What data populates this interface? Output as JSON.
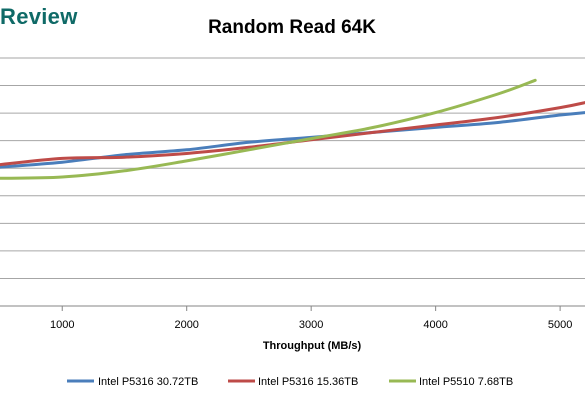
{
  "brand": "Review",
  "chart_data": {
    "type": "line",
    "title": "Random Read 64K",
    "xlabel": "Throughput (MB/s)",
    "ylabel": "",
    "xlim": [
      500,
      5200
    ],
    "ylim": [
      0,
      10
    ],
    "xticks": [
      1000,
      2000,
      3000,
      4000,
      5000
    ],
    "grid": true,
    "legend_position": "bottom",
    "series": [
      {
        "name": "Intel P5316 30.72TB",
        "color": "#4a7ebb",
        "x": [
          500,
          1000,
          1500,
          2000,
          2500,
          3000,
          3500,
          4000,
          4500,
          5000,
          5200
        ],
        "y": [
          5.6,
          5.8,
          6.1,
          6.3,
          6.6,
          6.8,
          7.0,
          7.2,
          7.4,
          7.7,
          7.8
        ]
      },
      {
        "name": "Intel P5316 15.36TB",
        "color": "#be4b48",
        "x": [
          500,
          1000,
          1500,
          2000,
          2500,
          3000,
          3500,
          4000,
          4500,
          5000,
          5200
        ],
        "y": [
          5.7,
          5.95,
          6.0,
          6.15,
          6.4,
          6.7,
          7.0,
          7.3,
          7.6,
          8.0,
          8.2
        ]
      },
      {
        "name": "Intel P5510 7.68TB",
        "color": "#98b954",
        "x": [
          500,
          1000,
          1500,
          2000,
          2500,
          3000,
          3500,
          4000,
          4500,
          4800
        ],
        "y": [
          5.15,
          5.2,
          5.45,
          5.85,
          6.3,
          6.75,
          7.2,
          7.8,
          8.55,
          9.1
        ]
      }
    ]
  }
}
